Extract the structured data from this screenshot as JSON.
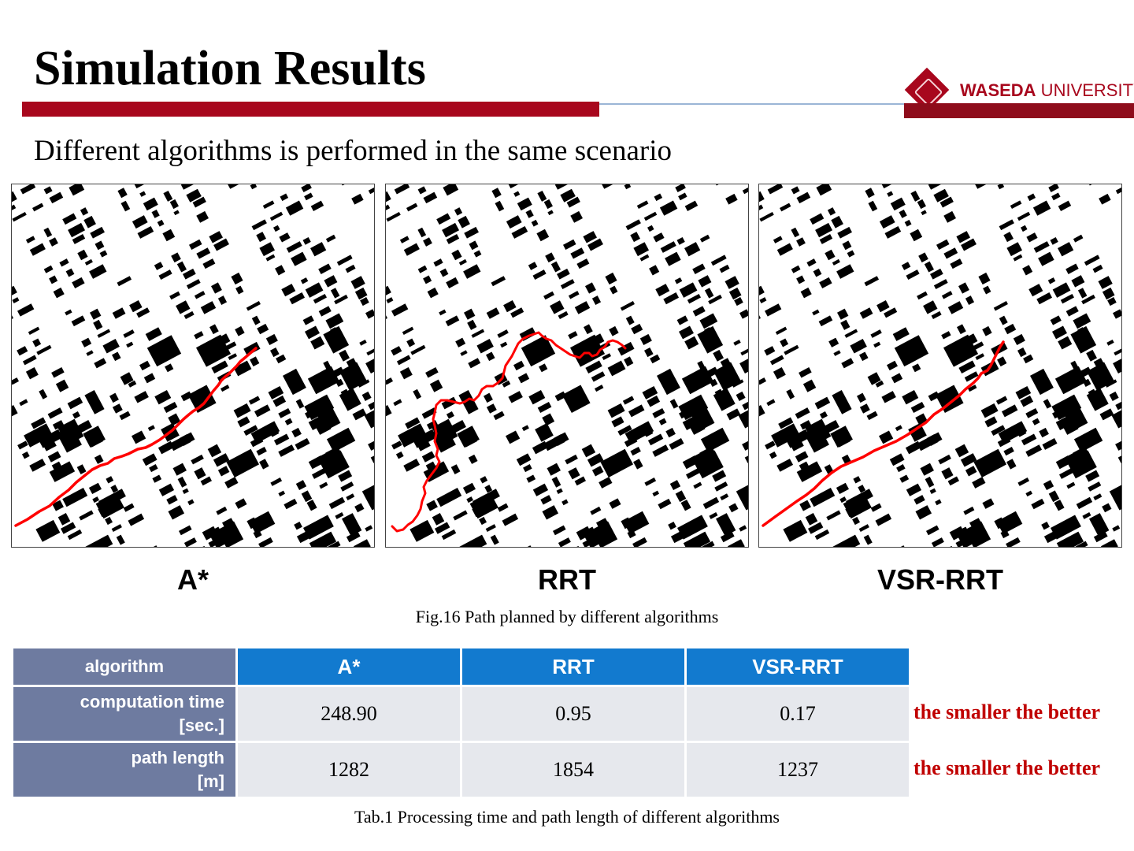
{
  "slide": {
    "title": "Simulation Results",
    "subtitle": "Different algorithms is performed in the same scenario",
    "logo": {
      "name_bold": "WASEDA",
      "name_rest": " UNIVERSITY"
    }
  },
  "figure": {
    "panels": [
      {
        "label": "A*"
      },
      {
        "label": "RRT"
      },
      {
        "label": "VSR-RRT"
      }
    ],
    "caption": "Fig.16 Path planned by different algorithms"
  },
  "table": {
    "header": [
      "algorithm",
      "A*",
      "RRT",
      "VSR-RRT"
    ],
    "rows": [
      {
        "label_line1": "computation time",
        "label_line2": "[sec.]",
        "values": [
          "248.90",
          "0.95",
          "0.17"
        ],
        "note": "the smaller the better"
      },
      {
        "label_line1": "path length",
        "label_line2": "[m]",
        "values": [
          "1282",
          "1854",
          "1237"
        ],
        "note": "the smaller the better"
      }
    ],
    "caption": "Tab.1 Processing time and path length of different algorithms"
  },
  "colors": {
    "brand_red": "#a8071d",
    "path_red": "#ff0000",
    "header_blue": "#127acf",
    "row_label_slate": "#6e7ba0",
    "note_red": "#c00000"
  }
}
